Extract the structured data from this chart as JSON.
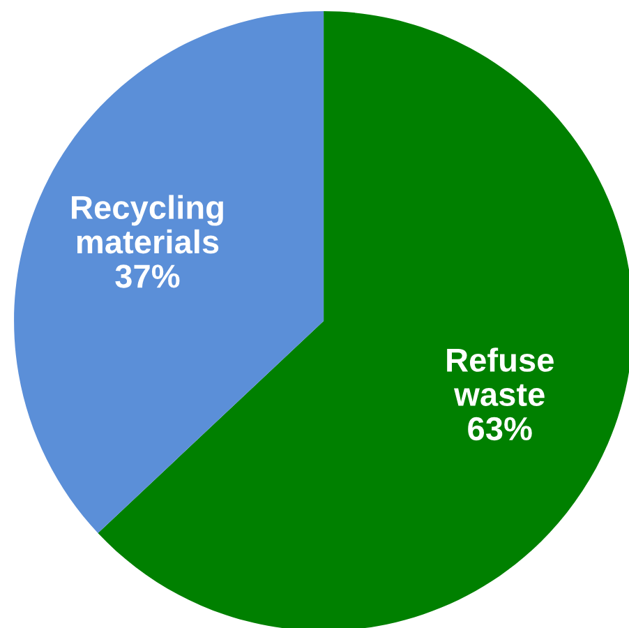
{
  "chart_data": {
    "type": "pie",
    "categories": [
      "Refuse waste",
      "Recycling materials"
    ],
    "values": [
      63,
      37
    ],
    "colors": [
      "#008000",
      "#5b8fd8"
    ],
    "value_labels": [
      "63%",
      "37%"
    ]
  }
}
